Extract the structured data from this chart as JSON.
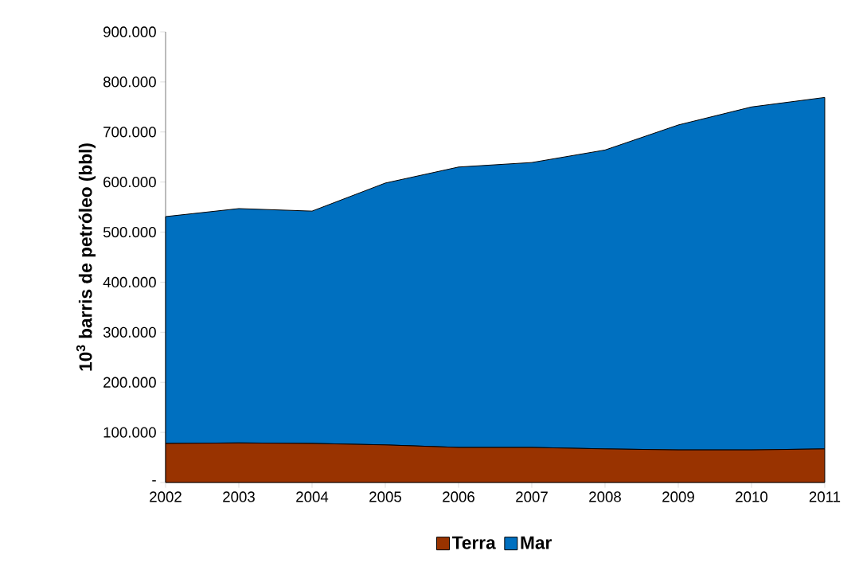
{
  "chart_data": {
    "type": "area",
    "stacked": true,
    "ylabel": "10$^{3}$ barris de petróleo (bbl)",
    "categories": [
      "2002",
      "2003",
      "2004",
      "2005",
      "2006",
      "2007",
      "2008",
      "2009",
      "2010",
      "2011"
    ],
    "series": [
      {
        "name": "Terra",
        "color": "#993300",
        "values": [
          78000,
          79000,
          78000,
          75000,
          70000,
          70000,
          67000,
          65000,
          65000,
          67000
        ]
      },
      {
        "name": "Mar",
        "color": "#0070c0",
        "values": [
          453000,
          468000,
          464000,
          523000,
          560000,
          569000,
          597000,
          649000,
          685000,
          702000
        ]
      }
    ],
    "ylim": [
      0,
      900000
    ],
    "yticks": [
      {
        "value": 0,
        "label": "-"
      },
      {
        "value": 100000,
        "label": "100.000"
      },
      {
        "value": 200000,
        "label": "200.000"
      },
      {
        "value": 300000,
        "label": "300.000"
      },
      {
        "value": 400000,
        "label": "400.000"
      },
      {
        "value": 500000,
        "label": "500.000"
      },
      {
        "value": 600000,
        "label": "600.000"
      },
      {
        "value": 700000,
        "label": "700.000"
      },
      {
        "value": 800000,
        "label": "800.000"
      },
      {
        "value": 900000,
        "label": "900.000"
      }
    ],
    "grid": false,
    "legend": "bottom"
  }
}
